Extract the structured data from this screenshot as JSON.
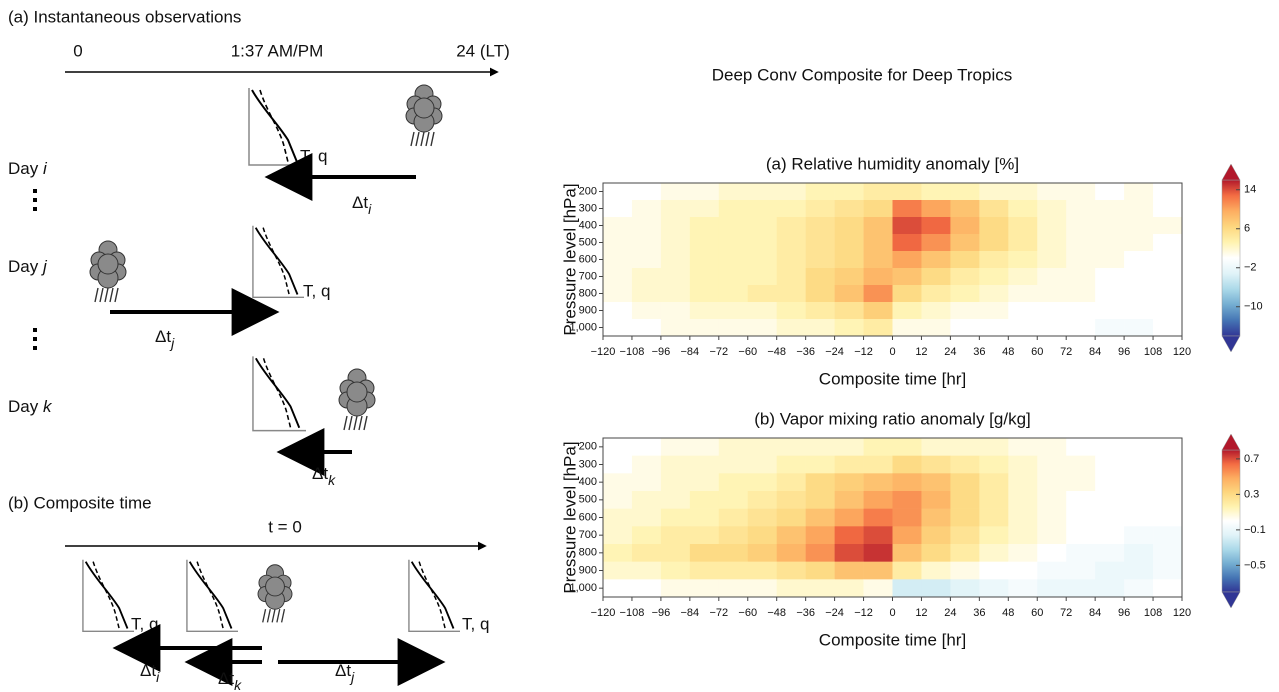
{
  "schematic": {
    "panel_a": "(a) Instantaneous observations",
    "timeline_a": [
      "0",
      "1:37 AM/PM",
      "24 (LT)"
    ],
    "days": [
      {
        "word": "Day",
        "index": "i"
      },
      {
        "word": "Day",
        "index": "j"
      },
      {
        "word": "Day",
        "index": "k"
      }
    ],
    "profile_labels": [
      "T, q",
      "T, q",
      "T, q",
      "T, q"
    ],
    "deltas": [
      {
        "symbol": "Δt",
        "index": "i"
      },
      {
        "symbol": "Δt",
        "index": "j"
      },
      {
        "symbol": "Δt",
        "index": "k"
      },
      {
        "symbol": "Δt",
        "index": "i"
      },
      {
        "symbol": "Δt",
        "index": "k"
      },
      {
        "symbol": "Δt",
        "index": "j"
      }
    ],
    "panel_b": "(b) Composite time",
    "t0": "t = 0"
  },
  "figure_title": "Deep Conv Composite for Deep Tropics",
  "chart_data": [
    {
      "type": "heatmap",
      "title": "(a) Relative humidity anomaly [%]",
      "x_label": "Composite time [hr]",
      "y_label": "Pressure level [hPa]",
      "x_bins": [
        -120,
        -108,
        -96,
        -84,
        -72,
        -60,
        -48,
        -36,
        -24,
        -12,
        0,
        12,
        24,
        36,
        48,
        60,
        72,
        84,
        96,
        108,
        120
      ],
      "y": [
        200,
        300,
        400,
        500,
        600,
        700,
        800,
        900,
        1000
      ],
      "xlim": [
        -120,
        120
      ],
      "ylim": [
        1050,
        150
      ],
      "xticks": [
        {
          "value": -120,
          "label": "−120"
        },
        {
          "value": -108,
          "label": "−108"
        },
        {
          "value": -96,
          "label": "−96"
        },
        {
          "value": -84,
          "label": "−84"
        },
        {
          "value": -72,
          "label": "−72"
        },
        {
          "value": -60,
          "label": "−60"
        },
        {
          "value": -48,
          "label": "−48"
        },
        {
          "value": -36,
          "label": "−36"
        },
        {
          "value": -24,
          "label": "−24"
        },
        {
          "value": -12,
          "label": "−12"
        },
        0,
        12,
        24,
        36,
        48,
        60,
        72,
        84,
        96,
        108,
        120
      ],
      "yticks": [
        200,
        300,
        400,
        500,
        600,
        700,
        800,
        900,
        {
          "value": 1000,
          "label": "1,000"
        }
      ],
      "zlim": [
        -16,
        16
      ],
      "zticks": [
        14,
        6,
        {
          "value": -2,
          "label": "−2"
        },
        {
          "value": -10,
          "label": "−10"
        }
      ],
      "colorscale": [
        "#313695",
        "#4575b4",
        "#74add1",
        "#abd9e9",
        "#e0f3f8",
        "#ffffff",
        "#fff3b0",
        "#fdd77f",
        "#fdae61",
        "#f46d43",
        "#b2182b"
      ],
      "values": [
        [
          0,
          0,
          1,
          1,
          2,
          2,
          2,
          3,
          3,
          4,
          4,
          3,
          3,
          2,
          2,
          1,
          1,
          0,
          1,
          0
        ],
        [
          0,
          1,
          2,
          2,
          3,
          3,
          3,
          4,
          5,
          6,
          12,
          10,
          8,
          5,
          3,
          2,
          1,
          1,
          1,
          0
        ],
        [
          1,
          1,
          2,
          3,
          3,
          3,
          4,
          5,
          6,
          8,
          14,
          13,
          9,
          6,
          4,
          2,
          1,
          1,
          1,
          1
        ],
        [
          1,
          1,
          2,
          3,
          3,
          3,
          4,
          5,
          6,
          8,
          13,
          11,
          8,
          6,
          4,
          2,
          1,
          1,
          1,
          0
        ],
        [
          1,
          1,
          2,
          3,
          3,
          3,
          4,
          5,
          6,
          8,
          10,
          8,
          6,
          4,
          3,
          2,
          1,
          1,
          0,
          0
        ],
        [
          1,
          2,
          2,
          3,
          3,
          3,
          4,
          6,
          7,
          9,
          8,
          6,
          4,
          3,
          2,
          1,
          1,
          0,
          0,
          0
        ],
        [
          1,
          2,
          2,
          3,
          3,
          4,
          4,
          6,
          8,
          11,
          6,
          4,
          3,
          2,
          1,
          1,
          1,
          0,
          0,
          0
        ],
        [
          0,
          1,
          1,
          2,
          2,
          2,
          3,
          4,
          5,
          7,
          3,
          2,
          1,
          1,
          0,
          0,
          0,
          0,
          0,
          0
        ],
        [
          0,
          0,
          1,
          1,
          1,
          1,
          2,
          2,
          3,
          4,
          1,
          1,
          0,
          0,
          0,
          0,
          0,
          -1,
          -1,
          0
        ]
      ]
    },
    {
      "type": "heatmap",
      "title": "(b) Vapor mixing ratio anomaly [g/kg]",
      "x_label": "Composite time [hr]",
      "y_label": "Pressure level [hPa]",
      "x_bins": [
        -120,
        -108,
        -96,
        -84,
        -72,
        -60,
        -48,
        -36,
        -24,
        -12,
        0,
        12,
        24,
        36,
        48,
        60,
        72,
        84,
        96,
        108,
        120
      ],
      "y": [
        200,
        300,
        400,
        500,
        600,
        700,
        800,
        900,
        1000
      ],
      "xlim": [
        -120,
        120
      ],
      "ylim": [
        1050,
        150
      ],
      "xticks": [
        {
          "value": -120,
          "label": "−120"
        },
        {
          "value": -108,
          "label": "−108"
        },
        {
          "value": -96,
          "label": "−96"
        },
        {
          "value": -84,
          "label": "−84"
        },
        {
          "value": -72,
          "label": "−72"
        },
        {
          "value": -60,
          "label": "−60"
        },
        {
          "value": -48,
          "label": "−48"
        },
        {
          "value": -36,
          "label": "−36"
        },
        {
          "value": -24,
          "label": "−24"
        },
        {
          "value": -12,
          "label": "−12"
        },
        0,
        12,
        24,
        36,
        48,
        60,
        72,
        84,
        96,
        108,
        120
      ],
      "yticks": [
        200,
        300,
        400,
        500,
        600,
        700,
        800,
        900,
        {
          "value": 1000,
          "label": "1,000"
        }
      ],
      "zlim": [
        -0.8,
        0.8
      ],
      "zticks": [
        0.7,
        0.3,
        {
          "value": -0.1,
          "label": "−0.1"
        },
        {
          "value": -0.5,
          "label": "−0.5"
        }
      ],
      "colorscale": [
        "#313695",
        "#4575b4",
        "#74add1",
        "#abd9e9",
        "#e0f3f8",
        "#ffffff",
        "#fff3b0",
        "#fdd77f",
        "#fdae61",
        "#f46d43",
        "#b2182b"
      ],
      "values": [
        [
          0,
          0,
          0.05,
          0.05,
          0.1,
          0.1,
          0.1,
          0.1,
          0.1,
          0.15,
          0.15,
          0.1,
          0.1,
          0.1,
          0.05,
          0.05,
          0,
          0,
          0,
          0
        ],
        [
          0,
          0.05,
          0.1,
          0.1,
          0.1,
          0.1,
          0.15,
          0.15,
          0.2,
          0.2,
          0.3,
          0.25,
          0.2,
          0.15,
          0.1,
          0.05,
          0.05,
          0,
          0,
          0
        ],
        [
          0.05,
          0.05,
          0.1,
          0.1,
          0.15,
          0.15,
          0.2,
          0.3,
          0.35,
          0.4,
          0.45,
          0.4,
          0.3,
          0.2,
          0.1,
          0.05,
          0.05,
          0,
          0,
          0
        ],
        [
          0.05,
          0.1,
          0.1,
          0.15,
          0.15,
          0.2,
          0.25,
          0.3,
          0.4,
          0.5,
          0.55,
          0.45,
          0.3,
          0.2,
          0.1,
          0.05,
          0,
          0,
          0,
          0
        ],
        [
          0.1,
          0.1,
          0.15,
          0.15,
          0.2,
          0.25,
          0.3,
          0.4,
          0.5,
          0.6,
          0.55,
          0.4,
          0.3,
          0.2,
          0.1,
          0.05,
          0,
          0,
          0,
          0
        ],
        [
          0.1,
          0.15,
          0.2,
          0.2,
          0.25,
          0.3,
          0.4,
          0.5,
          0.65,
          0.7,
          0.5,
          0.35,
          0.25,
          0.15,
          0.1,
          0.05,
          0,
          0,
          -0.05,
          -0.05
        ],
        [
          0.15,
          0.2,
          0.2,
          0.3,
          0.3,
          0.35,
          0.45,
          0.55,
          0.7,
          0.75,
          0.4,
          0.3,
          0.2,
          0.1,
          0.05,
          0,
          -0.05,
          -0.05,
          -0.1,
          -0.05
        ],
        [
          0.1,
          0.1,
          0.15,
          0.2,
          0.2,
          0.2,
          0.25,
          0.3,
          0.4,
          0.4,
          0.2,
          0.1,
          0.05,
          0,
          0,
          -0.05,
          -0.05,
          -0.1,
          -0.1,
          -0.05
        ],
        [
          0,
          0,
          0.05,
          0.05,
          0.05,
          0.05,
          0.1,
          0.1,
          0.1,
          0.05,
          -0.2,
          -0.2,
          -0.15,
          -0.1,
          -0.05,
          -0.1,
          -0.1,
          -0.1,
          -0.05,
          0
        ]
      ]
    }
  ]
}
